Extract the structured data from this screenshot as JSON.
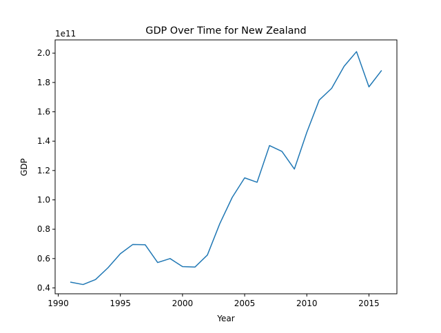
{
  "chart_data": {
    "type": "line",
    "title": "GDP Over Time for New Zealand",
    "xlabel": "Year",
    "ylabel": "GDP",
    "y_offset_label": "1e11",
    "y_scale": 100000000000.0,
    "xlim": [
      1989.75,
      2017.25
    ],
    "ylim": [
      36000000000.0,
      209000000000.0
    ],
    "xticks": [
      1990,
      1995,
      2000,
      2005,
      2010,
      2015
    ],
    "yticks": [
      0.4,
      0.6,
      0.8,
      1.0,
      1.2,
      1.4,
      1.6,
      1.8,
      2.0
    ],
    "grid": false,
    "legend": "none",
    "series": [
      {
        "color": "#1f77b4",
        "x": [
          1991,
          1992,
          1993,
          1994,
          1995,
          1996,
          1997,
          1998,
          1999,
          2000,
          2001,
          2002,
          2003,
          2004,
          2005,
          2006,
          2007,
          2008,
          2009,
          2010,
          2011,
          2012,
          2013,
          2014,
          2015,
          2016
        ],
        "y": [
          43900000000.0,
          42300000000.0,
          45700000000.0,
          53700000000.0,
          63300000000.0,
          69600000000.0,
          69400000000.0,
          57300000000.0,
          60000000000.0,
          54500000000.0,
          54200000000.0,
          62400000000.0,
          83800000000.0,
          101700000000.0,
          115000000000.0,
          112000000000.0,
          137000000000.0,
          133000000000.0,
          121000000000.0,
          146000000000.0,
          168000000000.0,
          176000000000.0,
          191000000000.0,
          201000000000.0,
          177000000000.0,
          188000000000.0
        ]
      }
    ]
  }
}
